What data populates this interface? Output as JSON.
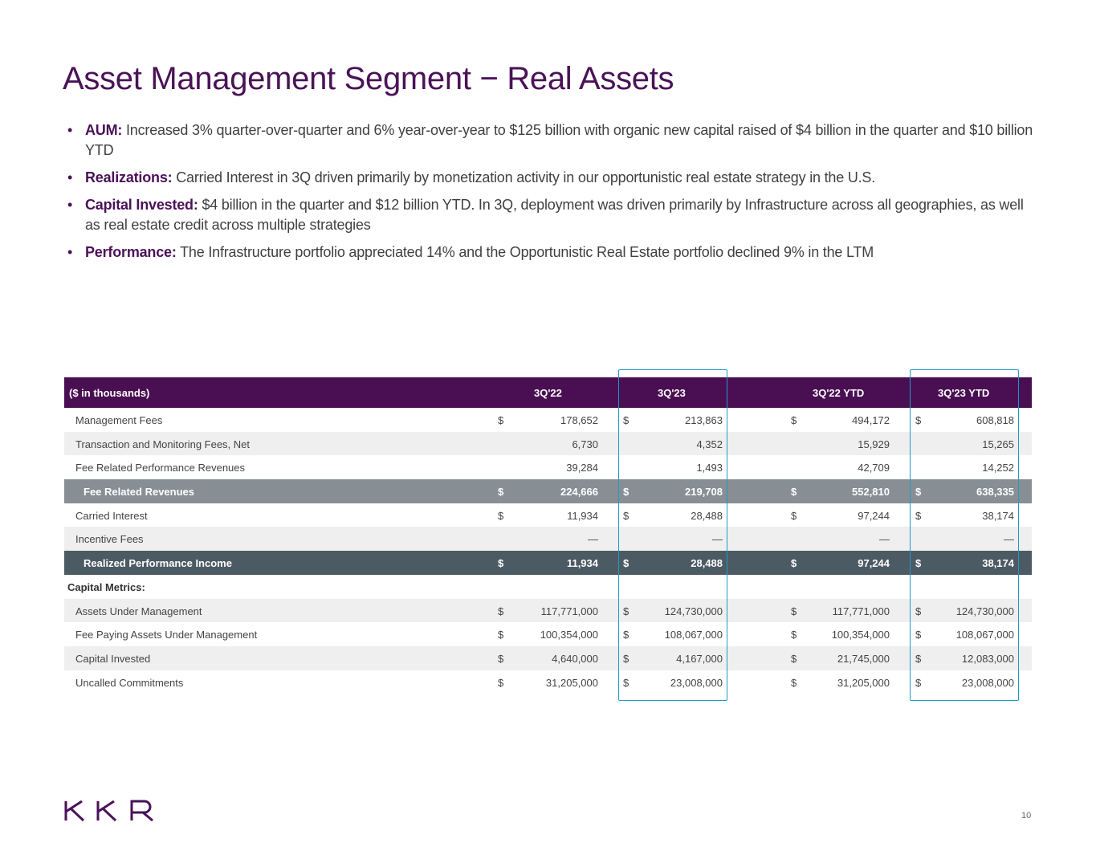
{
  "title": "Asset Management Segment − Real Assets",
  "bullets": [
    {
      "label": "AUM:",
      "text": " Increased 3% quarter-over-quarter and 6% year-over-year to $125 billion with organic new capital raised of $4 billion in the quarter and $10 billion YTD"
    },
    {
      "label": "Realizations:",
      "text": " Carried Interest in 3Q driven primarily by monetization activity in our opportunistic real estate strategy in the U.S."
    },
    {
      "label": "Capital Invested:",
      "text": " $4 billion in the quarter and $12 billion YTD. In 3Q, deployment was driven primarily by Infrastructure across all geographies, as well as real estate credit across multiple strategies"
    },
    {
      "label": "Performance:",
      "text": " The Infrastructure portfolio appreciated 14% and the Opportunistic Real Estate portfolio declined 9% in the LTM"
    }
  ],
  "table": {
    "header": {
      "label": "($ in thousands)",
      "cols": [
        "3Q'22",
        "3Q'23",
        "3Q'22 YTD",
        "3Q'23 YTD"
      ]
    },
    "rows": [
      {
        "label": "Management Fees",
        "style": "",
        "dollar": true,
        "values": [
          "178,652",
          "213,863",
          "494,172",
          "608,818"
        ]
      },
      {
        "label": "Transaction and Monitoring Fees, Net",
        "style": "alt",
        "dollar": false,
        "values": [
          "6,730",
          "4,352",
          "15,929",
          "15,265"
        ]
      },
      {
        "label": "Fee Related Performance Revenues",
        "style": "",
        "dollar": false,
        "values": [
          "39,284",
          "1,493",
          "42,709",
          "14,252"
        ]
      },
      {
        "label": "Fee Related Revenues",
        "style": "sub1",
        "dollar": true,
        "values": [
          "224,666",
          "219,708",
          "552,810",
          "638,335"
        ]
      },
      {
        "label": "Carried Interest",
        "style": "",
        "dollar": true,
        "values": [
          "11,934",
          "28,488",
          "97,244",
          "38,174"
        ]
      },
      {
        "label": "Incentive Fees",
        "style": "alt",
        "dollar": false,
        "values": [
          "—",
          "—",
          "—",
          "—"
        ]
      },
      {
        "label": "Realized Performance Income",
        "style": "sub2",
        "dollar": true,
        "values": [
          "11,934",
          "28,488",
          "97,244",
          "38,174"
        ]
      },
      {
        "label": "Capital Metrics:",
        "style": "sec",
        "dollar": false,
        "values": [
          "",
          "",
          "",
          ""
        ]
      },
      {
        "label": "Assets Under Management",
        "style": "alt",
        "dollar": true,
        "values": [
          "117,771,000",
          "124,730,000",
          "117,771,000",
          "124,730,000"
        ]
      },
      {
        "label": "Fee Paying Assets Under Management",
        "style": "",
        "dollar": true,
        "values": [
          "100,354,000",
          "108,067,000",
          "100,354,000",
          "108,067,000"
        ]
      },
      {
        "label": "Capital Invested",
        "style": "alt",
        "dollar": true,
        "values": [
          "4,640,000",
          "4,167,000",
          "21,745,000",
          "12,083,000"
        ]
      },
      {
        "label": "Uncalled Commitments",
        "style": "",
        "dollar": true,
        "values": [
          "31,205,000",
          "23,008,000",
          "31,205,000",
          "23,008,000"
        ]
      }
    ],
    "dollar_sign": "$"
  },
  "highlight_color": "#1e9ac9",
  "brand_color": "#4a1257",
  "logo": "KKR",
  "page_number": "10"
}
